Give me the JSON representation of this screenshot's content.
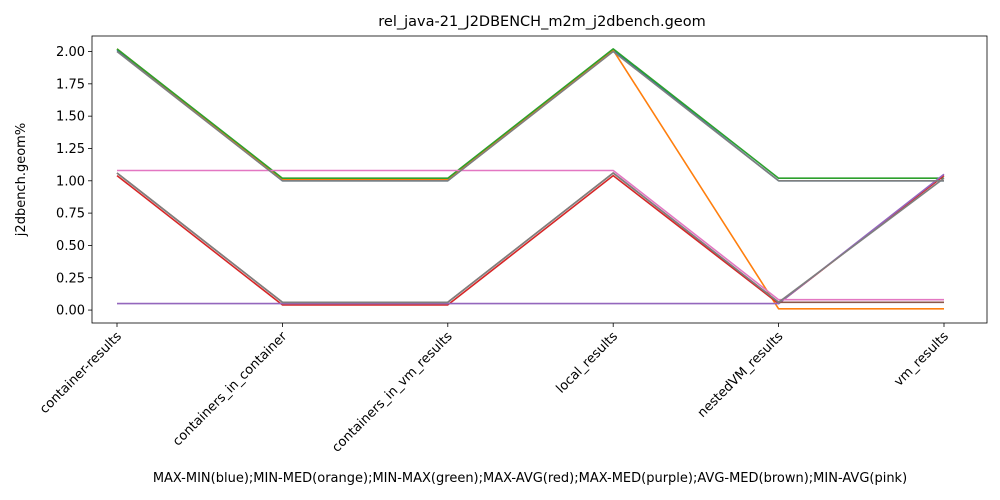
{
  "chart_data": {
    "type": "line",
    "title": "rel_java-21_J2DBENCH_m2m_j2dbench.geom",
    "xlabel": "MAX-MIN(blue);MIN-MED(orange);MIN-MAX(green);MAX-AVG(red);MAX-MED(purple);AVG-MED(brown);MIN-AVG(pink)",
    "ylabel": "j2dbench.geom%",
    "categories": [
      "container-results",
      "containers_in_container",
      "containers_in_vm_results",
      "local_results",
      "nestedVM_results",
      "vm_results"
    ],
    "ylim": [
      -0.1,
      2.12
    ],
    "yticks": [
      "0.00",
      "0.25",
      "0.50",
      "0.75",
      "1.00",
      "1.25",
      "1.50",
      "1.75",
      "2.00"
    ],
    "grid": false,
    "series": [
      {
        "color": "#1f77b4",
        "values": [
          2.01,
          1.0,
          1.0,
          2.01,
          1.0,
          1.0
        ]
      },
      {
        "color": "#ff7f0e",
        "values": [
          2.02,
          1.01,
          1.01,
          2.01,
          0.01,
          0.01
        ]
      },
      {
        "color": "#2ca02c",
        "values": [
          2.02,
          1.02,
          1.02,
          2.02,
          1.02,
          1.02
        ]
      },
      {
        "color": "#d62728",
        "values": [
          1.04,
          0.04,
          0.04,
          1.04,
          0.05,
          1.04
        ]
      },
      {
        "color": "#9467bd",
        "values": [
          0.05,
          0.05,
          0.05,
          0.05,
          0.05,
          1.05
        ]
      },
      {
        "color": "#8c564b",
        "values": [
          1.06,
          0.06,
          0.06,
          1.06,
          0.06,
          0.06
        ]
      },
      {
        "color": "#e377c2",
        "values": [
          1.08,
          1.08,
          1.08,
          1.08,
          0.08,
          0.08
        ]
      },
      {
        "color": "#7f7f7f",
        "values": [
          2.0,
          1.0,
          1.0,
          2.0,
          1.0,
          1.0
        ]
      },
      {
        "color": "#7f7f7f",
        "values": [
          1.06,
          0.06,
          0.06,
          1.06,
          0.06,
          1.02
        ]
      }
    ]
  }
}
